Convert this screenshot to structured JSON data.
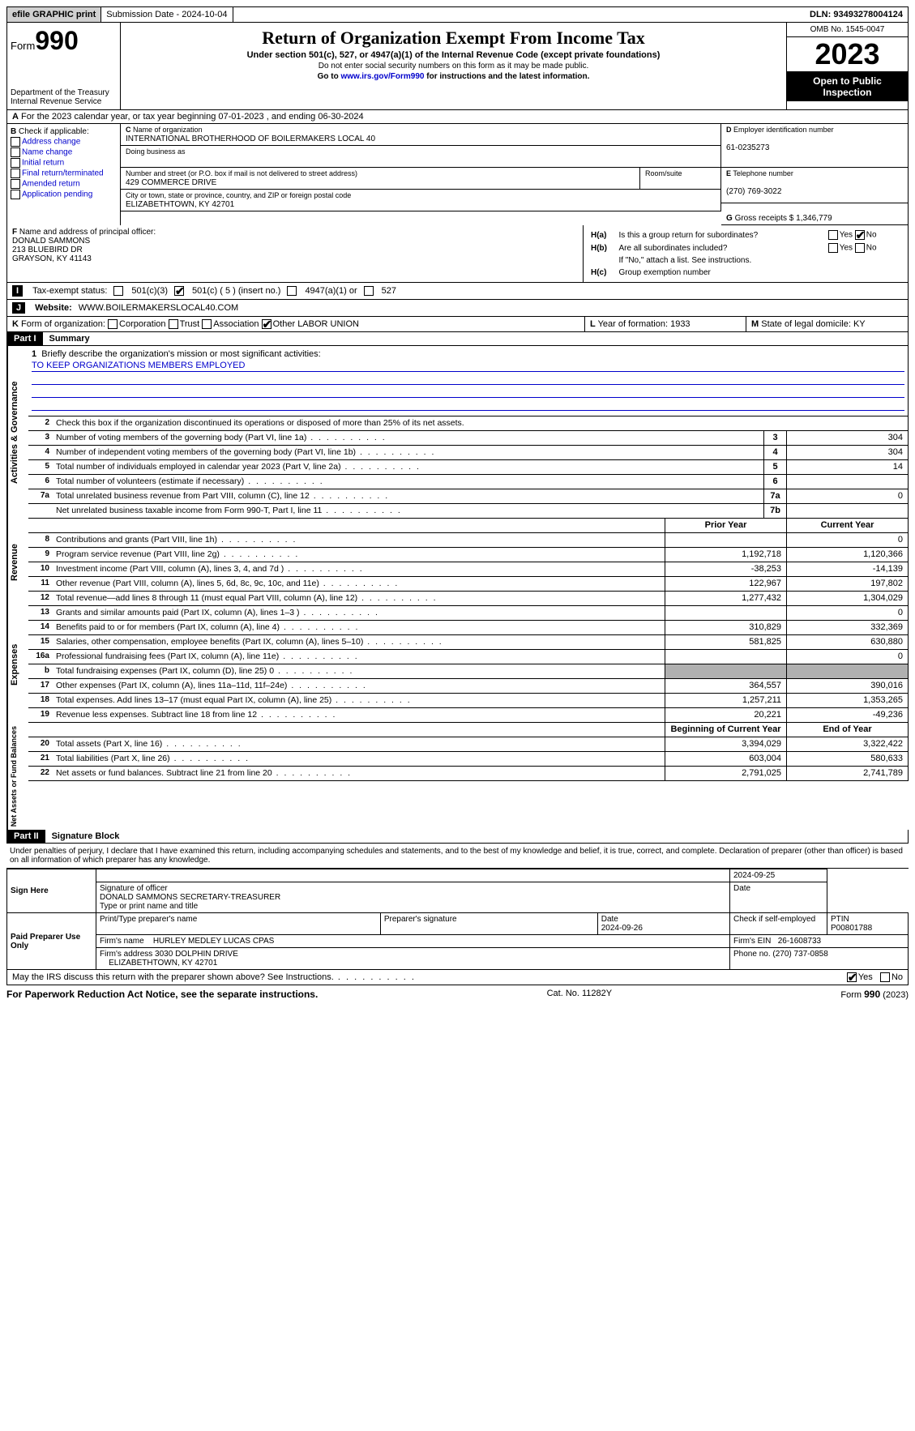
{
  "topbar": {
    "efile": "efile GRAPHIC print",
    "submission": "Submission Date - 2024-10-04",
    "dln": "DLN: 93493278004124"
  },
  "header": {
    "form_word": "Form",
    "form_num": "990",
    "dept": "Department of the Treasury",
    "irs": "Internal Revenue Service",
    "title": "Return of Organization Exempt From Income Tax",
    "subtitle": "Under section 501(c), 527, or 4947(a)(1) of the Internal Revenue Code (except private foundations)",
    "note1": "Do not enter social security numbers on this form as it may be made public.",
    "note2_pre": "Go to ",
    "note2_link": "www.irs.gov/Form990",
    "note2_post": " for instructions and the latest information.",
    "omb": "OMB No. 1545-0047",
    "year": "2023",
    "open": "Open to Public Inspection"
  },
  "row_a": "For the 2023 calendar year, or tax year beginning 07-01-2023    , and ending 06-30-2024",
  "b": {
    "label": "Check if applicable:",
    "opts": [
      "Address change",
      "Name change",
      "Initial return",
      "Final return/terminated",
      "Amended return",
      "Application pending"
    ]
  },
  "c": {
    "name_lbl": "Name of organization",
    "name": "INTERNATIONAL BROTHERHOOD OF BOILERMAKERS LOCAL 40",
    "dba_lbl": "Doing business as",
    "dba": "",
    "street_lbl": "Number and street (or P.O. box if mail is not delivered to street address)",
    "street": "429 COMMERCE DRIVE",
    "room_lbl": "Room/suite",
    "city_lbl": "City or town, state or province, country, and ZIP or foreign postal code",
    "city": "ELIZABETHTOWN, KY  42701"
  },
  "d": {
    "lbl": "Employer identification number",
    "tag": "D",
    "val": "61-0235273"
  },
  "e": {
    "lbl": "Telephone number",
    "tag": "E",
    "val": "(270) 769-3022"
  },
  "g": {
    "lbl": "Gross receipts $",
    "tag": "G",
    "val": "1,346,779"
  },
  "f": {
    "lbl": "Name and address of principal officer:",
    "tag": "F",
    "name": "DONALD SAMMONS",
    "addr1": "213 BLUEBIRD DR",
    "addr2": "GRAYSON, KY  41143"
  },
  "h": {
    "a": "Is this a group return for subordinates?",
    "b": "Are all subordinates included?",
    "bnote": "If \"No,\" attach a list. See instructions.",
    "c": "Group exemption number"
  },
  "i": {
    "label": "Tax-exempt status:",
    "tag": "I",
    "c3": "501(c)(3)",
    "c5": "501(c) ( 5 ) (insert no.)",
    "a1": "4947(a)(1) or",
    "s527": "527"
  },
  "j": {
    "label": "Website:",
    "tag": "J",
    "val": "WWW.BOILERMAKERSLOCAL40.COM"
  },
  "k": {
    "label": "Form of organization:",
    "tag": "K",
    "corp": "Corporation",
    "trust": "Trust",
    "assoc": "Association",
    "other": "Other",
    "other_val": "LABOR UNION"
  },
  "l": {
    "label": "Year of formation:",
    "tag": "L",
    "val": "1933"
  },
  "m": {
    "label": "State of legal domicile:",
    "tag": "M",
    "val": "KY"
  },
  "part1": {
    "tag": "Part I",
    "title": "Summary"
  },
  "s1": {
    "mission_lbl": "Briefly describe the organization's mission or most significant activities:",
    "mission": "TO KEEP ORGANIZATIONS MEMBERS EMPLOYED",
    "l2": "Check this box       if the organization discontinued its operations or disposed of more than 25% of its net assets.",
    "rows": [
      {
        "n": "3",
        "d": "Number of voting members of the governing body (Part VI, line 1a)",
        "box": "3",
        "v": "304"
      },
      {
        "n": "4",
        "d": "Number of independent voting members of the governing body (Part VI, line 1b)",
        "box": "4",
        "v": "304"
      },
      {
        "n": "5",
        "d": "Total number of individuals employed in calendar year 2023 (Part V, line 2a)",
        "box": "5",
        "v": "14"
      },
      {
        "n": "6",
        "d": "Total number of volunteers (estimate if necessary)",
        "box": "6",
        "v": ""
      },
      {
        "n": "7a",
        "d": "Total unrelated business revenue from Part VIII, column (C), line 12",
        "box": "7a",
        "v": "0"
      },
      {
        "n": "",
        "d": "Net unrelated business taxable income from Form 990-T, Part I, line 11",
        "box": "7b",
        "v": ""
      }
    ]
  },
  "cols": {
    "prior": "Prior Year",
    "current": "Current Year",
    "begin": "Beginning of Current Year",
    "end": "End of Year"
  },
  "rev": {
    "side": "Revenue",
    "rows": [
      {
        "n": "8",
        "d": "Contributions and grants (Part VIII, line 1h)",
        "p": "",
        "c": "0"
      },
      {
        "n": "9",
        "d": "Program service revenue (Part VIII, line 2g)",
        "p": "1,192,718",
        "c": "1,120,366"
      },
      {
        "n": "10",
        "d": "Investment income (Part VIII, column (A), lines 3, 4, and 7d )",
        "p": "-38,253",
        "c": "-14,139"
      },
      {
        "n": "11",
        "d": "Other revenue (Part VIII, column (A), lines 5, 6d, 8c, 9c, 10c, and 11e)",
        "p": "122,967",
        "c": "197,802"
      },
      {
        "n": "12",
        "d": "Total revenue—add lines 8 through 11 (must equal Part VIII, column (A), line 12)",
        "p": "1,277,432",
        "c": "1,304,029"
      }
    ]
  },
  "exp": {
    "side": "Expenses",
    "rows": [
      {
        "n": "13",
        "d": "Grants and similar amounts paid (Part IX, column (A), lines 1–3 )",
        "p": "",
        "c": "0"
      },
      {
        "n": "14",
        "d": "Benefits paid to or for members (Part IX, column (A), line 4)",
        "p": "310,829",
        "c": "332,369"
      },
      {
        "n": "15",
        "d": "Salaries, other compensation, employee benefits (Part IX, column (A), lines 5–10)",
        "p": "581,825",
        "c": "630,880"
      },
      {
        "n": "16a",
        "d": "Professional fundraising fees (Part IX, column (A), line 11e)",
        "p": "",
        "c": "0"
      },
      {
        "n": "b",
        "d": "Total fundraising expenses (Part IX, column (D), line 25) 0",
        "p": "grey",
        "c": "grey"
      },
      {
        "n": "17",
        "d": "Other expenses (Part IX, column (A), lines 11a–11d, 11f–24e)",
        "p": "364,557",
        "c": "390,016"
      },
      {
        "n": "18",
        "d": "Total expenses. Add lines 13–17 (must equal Part IX, column (A), line 25)",
        "p": "1,257,211",
        "c": "1,353,265"
      },
      {
        "n": "19",
        "d": "Revenue less expenses. Subtract line 18 from line 12",
        "p": "20,221",
        "c": "-49,236"
      }
    ]
  },
  "net": {
    "side": "Net Assets or Fund Balances",
    "rows": [
      {
        "n": "20",
        "d": "Total assets (Part X, line 16)",
        "p": "3,394,029",
        "c": "3,322,422"
      },
      {
        "n": "21",
        "d": "Total liabilities (Part X, line 26)",
        "p": "603,004",
        "c": "580,633"
      },
      {
        "n": "22",
        "d": "Net assets or fund balances. Subtract line 21 from line 20",
        "p": "2,791,025",
        "c": "2,741,789"
      }
    ]
  },
  "part2": {
    "tag": "Part II",
    "title": "Signature Block"
  },
  "sig": {
    "decl": "Under penalties of perjury, I declare that I have examined this return, including accompanying schedules and statements, and to the best of my knowledge and belief, it is true, correct, and complete. Declaration of preparer (other than officer) is based on all information of which preparer has any knowledge.",
    "sign_here": "Sign Here",
    "sig_officer": "Signature of officer",
    "officer": "DONALD SAMMONS  SECRETARY-TREASURER",
    "type_name": "Type or print name and title",
    "date1": "2024-09-25",
    "date_lbl": "Date",
    "paid": "Paid Preparer Use Only",
    "prep_name_lbl": "Print/Type preparer's name",
    "prep_sig_lbl": "Preparer's signature",
    "date2": "2024-09-26",
    "check_self": "Check         if self-employed",
    "ptin_lbl": "PTIN",
    "ptin": "P00801788",
    "firm_name_lbl": "Firm's name",
    "firm_name": "HURLEY MEDLEY LUCAS CPAS",
    "firm_ein_lbl": "Firm's EIN",
    "firm_ein": "26-1608733",
    "firm_addr_lbl": "Firm's address",
    "firm_addr1": "3030 DOLPHIN DRIVE",
    "firm_addr2": "ELIZABETHTOWN, KY  42701",
    "phone_lbl": "Phone no.",
    "phone": "(270) 737-0858",
    "discuss": "May the IRS discuss this return with the preparer shown above? See Instructions.",
    "yes": "Yes",
    "no": "No"
  },
  "footer": {
    "pra": "For Paperwork Reduction Act Notice, see the separate instructions.",
    "cat": "Cat. No. 11282Y",
    "form": "Form 990 (2023)"
  }
}
